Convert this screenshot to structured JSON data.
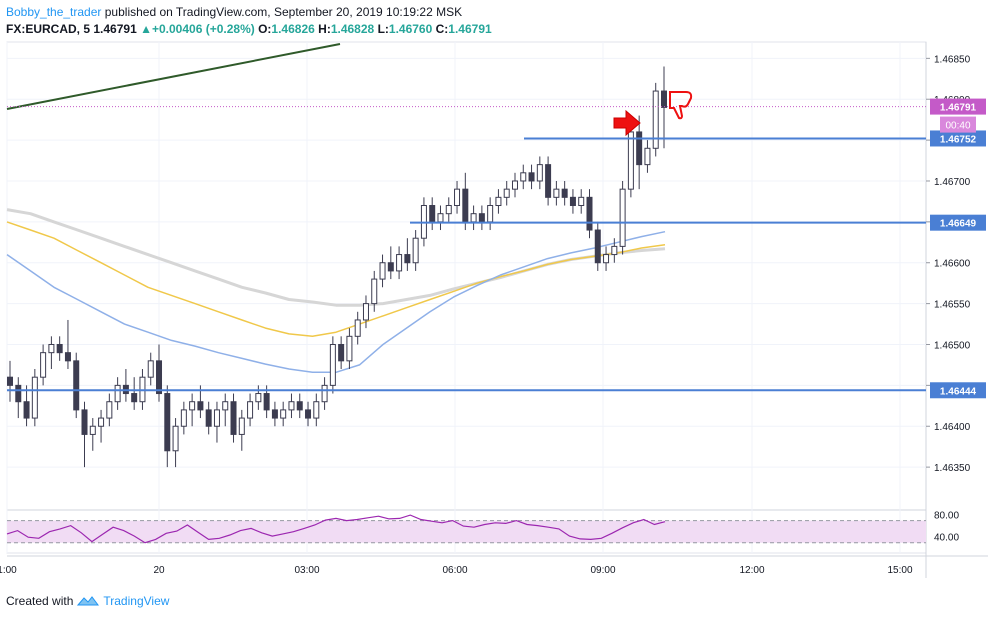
{
  "header": {
    "author": "Bobby_the_trader",
    "published_text": "published on TradingView.com, September 20, 2019 10:19:22 MSK",
    "symbol": "FX:EURCAD, 5",
    "last": "1.46791",
    "change": "+0.00406 (+0.28%)",
    "o_label": "O:",
    "o": "1.46826",
    "h_label": "H:",
    "h": "1.46828",
    "l_label": "L:",
    "l": "1.46760",
    "c_label": "C:",
    "c": "1.46791"
  },
  "footer": {
    "created_with": "Created with",
    "brand": "TradingView"
  },
  "colors": {
    "up": "#26a69a",
    "candle": "#3c3c50",
    "hline": "#4a7fd4",
    "trend": "#2f5a2a",
    "ma_gray": "#d6d6d6",
    "ma_yellow": "#f0c84a",
    "ma_blue": "#8fb0e8",
    "rsi": "#9c27b0",
    "rsi_fill": "#f1dcf4",
    "last_price": "#c45ac8",
    "arrow": "#ee1111"
  },
  "chart_data": {
    "type": "candlestick",
    "ylim": [
      1.463,
      1.4687
    ],
    "price_ticks": [
      "1.46850",
      "1.46800",
      "1.46750",
      "1.46700",
      "1.46650",
      "1.46600",
      "1.46550",
      "1.46500",
      "1.46450",
      "1.46400",
      "1.46350"
    ],
    "time_ticks": [
      "1:00",
      "20",
      "03:00",
      "06:00",
      "09:00",
      "12:00",
      "15:00"
    ],
    "level_labels": [
      "1.46752",
      "1.46649",
      "1.46444"
    ],
    "levels": [
      1.46752,
      1.46649,
      1.46444
    ],
    "last_price_label": "1.46791",
    "countdown": "00:40",
    "rsi_ticks": [
      "80.00",
      "40.00"
    ],
    "rsi_levels": [
      70,
      30
    ],
    "candles": [
      [
        1.4646,
        1.4648,
        1.4643,
        1.4645
      ],
      [
        1.4645,
        1.4646,
        1.4641,
        1.4643
      ],
      [
        1.4643,
        1.4645,
        1.464,
        1.4641
      ],
      [
        1.4641,
        1.4647,
        1.464,
        1.4646
      ],
      [
        1.4646,
        1.465,
        1.4645,
        1.4649
      ],
      [
        1.4649,
        1.4651,
        1.4647,
        1.465
      ],
      [
        1.465,
        1.4651,
        1.4648,
        1.4649
      ],
      [
        1.4649,
        1.4653,
        1.4647,
        1.4648
      ],
      [
        1.4648,
        1.4649,
        1.4641,
        1.4642
      ],
      [
        1.4642,
        1.4643,
        1.4635,
        1.4639
      ],
      [
        1.4639,
        1.4641,
        1.4637,
        1.464
      ],
      [
        1.464,
        1.4642,
        1.4638,
        1.4641
      ],
      [
        1.4641,
        1.4644,
        1.464,
        1.4643
      ],
      [
        1.4643,
        1.4646,
        1.4642,
        1.4645
      ],
      [
        1.4645,
        1.4647,
        1.4643,
        1.4644
      ],
      [
        1.4644,
        1.4646,
        1.4642,
        1.4643
      ],
      [
        1.4643,
        1.4647,
        1.4642,
        1.4646
      ],
      [
        1.4646,
        1.4649,
        1.4645,
        1.4648
      ],
      [
        1.4648,
        1.465,
        1.4643,
        1.4644
      ],
      [
        1.4644,
        1.4645,
        1.4635,
        1.4637
      ],
      [
        1.4637,
        1.4641,
        1.4635,
        1.464
      ],
      [
        1.464,
        1.4643,
        1.4639,
        1.4642
      ],
      [
        1.4642,
        1.4644,
        1.464,
        1.4643
      ],
      [
        1.4643,
        1.4645,
        1.4641,
        1.4642
      ],
      [
        1.4642,
        1.4643,
        1.4639,
        1.464
      ],
      [
        1.464,
        1.4643,
        1.4638,
        1.4642
      ],
      [
        1.4642,
        1.4644,
        1.464,
        1.4643
      ],
      [
        1.4643,
        1.4644,
        1.4638,
        1.4639
      ],
      [
        1.4639,
        1.4642,
        1.4637,
        1.4641
      ],
      [
        1.4641,
        1.4644,
        1.464,
        1.4643
      ],
      [
        1.4643,
        1.4645,
        1.4642,
        1.4644
      ],
      [
        1.4644,
        1.4645,
        1.4641,
        1.4642
      ],
      [
        1.4642,
        1.4643,
        1.464,
        1.4641
      ],
      [
        1.4641,
        1.4643,
        1.464,
        1.4642
      ],
      [
        1.4642,
        1.4644,
        1.4641,
        1.4643
      ],
      [
        1.4643,
        1.4644,
        1.4641,
        1.4642
      ],
      [
        1.4642,
        1.4643,
        1.464,
        1.4641
      ],
      [
        1.4641,
        1.4644,
        1.464,
        1.4643
      ],
      [
        1.4643,
        1.4646,
        1.4642,
        1.4645
      ],
      [
        1.4645,
        1.4651,
        1.4644,
        1.465
      ],
      [
        1.465,
        1.4651,
        1.4647,
        1.4648
      ],
      [
        1.4648,
        1.4652,
        1.4647,
        1.4651
      ],
      [
        1.4651,
        1.4654,
        1.465,
        1.4653
      ],
      [
        1.4653,
        1.4656,
        1.4652,
        1.4655
      ],
      [
        1.4655,
        1.4659,
        1.4654,
        1.4658
      ],
      [
        1.4658,
        1.4661,
        1.4657,
        1.466
      ],
      [
        1.466,
        1.4662,
        1.4658,
        1.4659
      ],
      [
        1.4659,
        1.4662,
        1.4658,
        1.4661
      ],
      [
        1.4661,
        1.4663,
        1.4659,
        1.466
      ],
      [
        1.466,
        1.4664,
        1.4659,
        1.4663
      ],
      [
        1.4663,
        1.4668,
        1.4662,
        1.4667
      ],
      [
        1.4667,
        1.4668,
        1.4664,
        1.4665
      ],
      [
        1.4665,
        1.4667,
        1.4664,
        1.4666
      ],
      [
        1.4666,
        1.4668,
        1.4665,
        1.4667
      ],
      [
        1.4667,
        1.467,
        1.4666,
        1.4669
      ],
      [
        1.4669,
        1.4671,
        1.4664,
        1.4665
      ],
      [
        1.4665,
        1.4667,
        1.4664,
        1.4666
      ],
      [
        1.4666,
        1.4667,
        1.4664,
        1.4665
      ],
      [
        1.4665,
        1.4668,
        1.4664,
        1.4667
      ],
      [
        1.4667,
        1.4669,
        1.4666,
        1.4668
      ],
      [
        1.4668,
        1.467,
        1.4667,
        1.4669
      ],
      [
        1.4669,
        1.4671,
        1.4668,
        1.467
      ],
      [
        1.467,
        1.4672,
        1.4669,
        1.4671
      ],
      [
        1.4671,
        1.4672,
        1.4669,
        1.467
      ],
      [
        1.467,
        1.4673,
        1.4669,
        1.4672
      ],
      [
        1.4672,
        1.4673,
        1.4667,
        1.4668
      ],
      [
        1.4668,
        1.467,
        1.4667,
        1.4669
      ],
      [
        1.4669,
        1.467,
        1.4667,
        1.4668
      ],
      [
        1.4668,
        1.4669,
        1.4666,
        1.4667
      ],
      [
        1.4667,
        1.4669,
        1.4666,
        1.4668
      ],
      [
        1.4668,
        1.4669,
        1.4663,
        1.4664
      ],
      [
        1.4664,
        1.4665,
        1.4659,
        1.466
      ],
      [
        1.466,
        1.4662,
        1.4659,
        1.4661
      ],
      [
        1.4661,
        1.4663,
        1.466,
        1.4662
      ],
      [
        1.4662,
        1.467,
        1.4661,
        1.4669
      ],
      [
        1.4669,
        1.4677,
        1.4668,
        1.4676
      ],
      [
        1.4676,
        1.4678,
        1.4669,
        1.4672
      ],
      [
        1.4672,
        1.4675,
        1.4671,
        1.4674
      ],
      [
        1.4674,
        1.4682,
        1.4673,
        1.4681
      ],
      [
        1.4681,
        1.4684,
        1.4674,
        1.4679
      ]
    ],
    "ma_gray": [
      1.46665,
      1.4666,
      1.4665,
      1.4664,
      1.4663,
      1.4662,
      1.4661,
      1.466,
      1.4659,
      1.4658,
      1.4657,
      1.46563,
      1.46555,
      1.46552,
      1.46548,
      1.46548,
      1.4655,
      1.46555,
      1.4656,
      1.46568,
      1.46575,
      1.46582,
      1.4659,
      1.46598,
      1.46604,
      1.46608,
      1.46612,
      1.46615,
      1.46617
    ],
    "ma_yellow": [
      1.4665,
      1.4664,
      1.4663,
      1.46615,
      1.466,
      1.46585,
      1.4657,
      1.4656,
      1.4655,
      1.4654,
      1.4653,
      1.4652,
      1.46513,
      1.4651,
      1.46515,
      1.46525,
      1.46535,
      1.46545,
      1.46555,
      1.46565,
      1.46575,
      1.46583,
      1.4659,
      1.46598,
      1.46604,
      1.46608,
      1.46612,
      1.46618,
      1.46622
    ],
    "ma_blue": [
      1.4661,
      1.4659,
      1.4657,
      1.46555,
      1.4654,
      1.46525,
      1.46515,
      1.46505,
      1.46498,
      1.4649,
      1.46483,
      1.46476,
      1.4647,
      1.46466,
      1.46466,
      1.46475,
      1.465,
      1.4652,
      1.4654,
      1.46558,
      1.46572,
      1.46585,
      1.46595,
      1.46605,
      1.46612,
      1.46618,
      1.46625,
      1.46632,
      1.46638
    ],
    "rsi": [
      46,
      52,
      40,
      38,
      50,
      55,
      61,
      48,
      32,
      45,
      58,
      52,
      42,
      30,
      36,
      47,
      51,
      62,
      49,
      36,
      38,
      44,
      52,
      56,
      48,
      42,
      46,
      50,
      56,
      62,
      71,
      74,
      70,
      72,
      75,
      78,
      73,
      74,
      80,
      72,
      69,
      66,
      70,
      60,
      58,
      63,
      66,
      65,
      70,
      63,
      61,
      58,
      55,
      42,
      37,
      36,
      38,
      47,
      57,
      66,
      72,
      63,
      68
    ]
  }
}
